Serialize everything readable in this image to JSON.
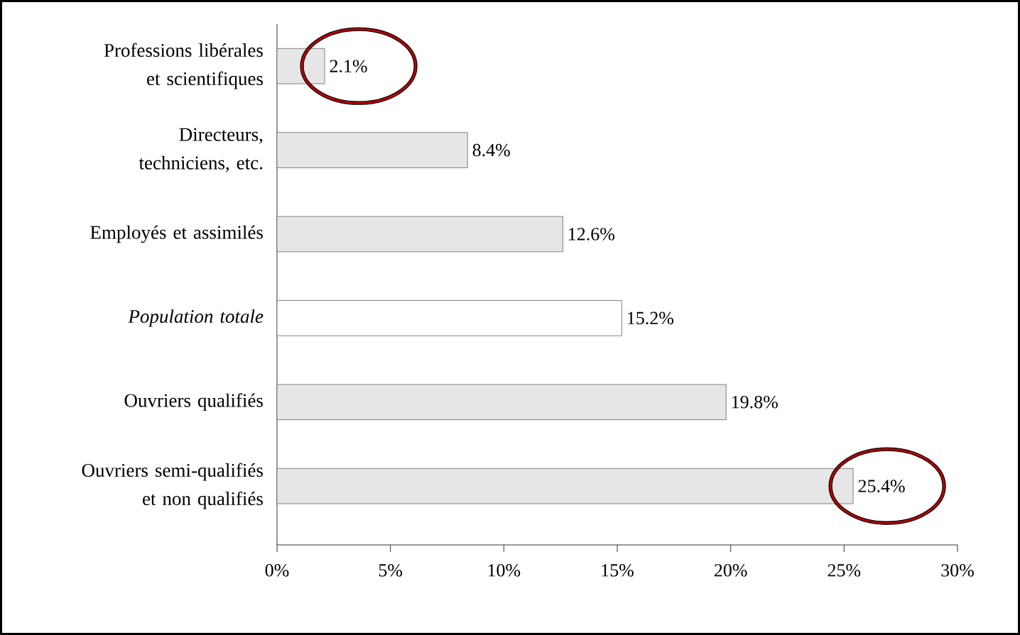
{
  "chart_data": {
    "type": "bar",
    "orientation": "horizontal",
    "categories": [
      "Professions libérales\net scientifiques",
      "Directeurs,\ntechniciens, etc.",
      "Employés et assimilés",
      "*Population totale*",
      "Ouvriers qualifiés",
      "Ouvriers semi-qualifiés\net non qualifiés"
    ],
    "values": [
      2.1,
      8.4,
      12.6,
      15.2,
      19.8,
      25.4
    ],
    "colors": [
      "#e6e6e6",
      "#e6e6e6",
      "#e6e6e6",
      "#ffffff",
      "#e6e6e6",
      "#e6e6e6"
    ],
    "value_labels": [
      "2.1%",
      "8.4%",
      "12.6%",
      "15.2%",
      "19.8%",
      "25.4%"
    ],
    "xlim": [
      0,
      30
    ],
    "xticks": [
      {
        "value": 0,
        "label": "0%"
      },
      {
        "value": 5,
        "label": "5%"
      },
      {
        "value": 10,
        "label": "10%"
      },
      {
        "value": 15,
        "label": "15%"
      },
      {
        "value": 20,
        "label": "20%"
      },
      {
        "value": 25,
        "label": "25%"
      },
      {
        "value": 30,
        "label": "30%"
      }
    ],
    "grid": false
  }
}
